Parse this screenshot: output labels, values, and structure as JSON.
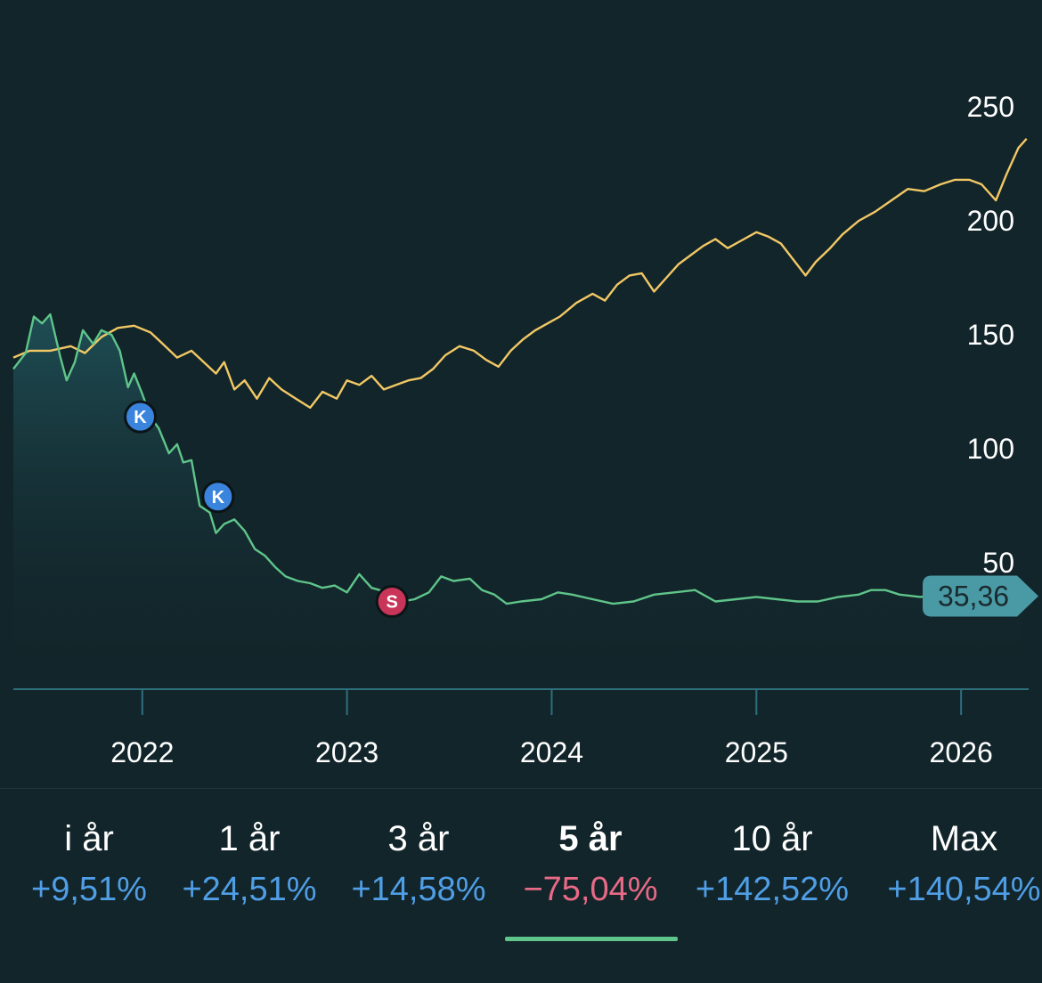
{
  "colors": {
    "background": "#12252a",
    "axis": "#2e6f7c",
    "stock_line": "#5fc58a",
    "index_line": "#f2c865",
    "positive": "#4f9ee6",
    "negative": "#e86a86",
    "buy_marker": "#3a84dd",
    "sell_marker": "#c93559",
    "price_badge": "#4a9aa6"
  },
  "chart_data": {
    "type": "line",
    "x_axis": {
      "ticks": [
        "2022",
        "2023",
        "2024",
        "2025",
        "2026"
      ],
      "range": [
        2021.37,
        2026.33
      ]
    },
    "y_axis": {
      "ticks": [
        "50",
        "100",
        "150",
        "200",
        "250"
      ],
      "range": [
        0,
        265
      ]
    },
    "grid": false,
    "current_value_label": "35,36",
    "series": [
      {
        "key": "stock",
        "area_fill": true,
        "points": [
          [
            2021.37,
            135
          ],
          [
            2021.43,
            142
          ],
          [
            2021.47,
            158
          ],
          [
            2021.51,
            155
          ],
          [
            2021.55,
            159
          ],
          [
            2021.6,
            140
          ],
          [
            2021.63,
            130
          ],
          [
            2021.67,
            138
          ],
          [
            2021.71,
            152
          ],
          [
            2021.76,
            146
          ],
          [
            2021.8,
            152
          ],
          [
            2021.85,
            150
          ],
          [
            2021.89,
            143
          ],
          [
            2021.93,
            127
          ],
          [
            2021.96,
            133
          ],
          [
            2022.0,
            124
          ],
          [
            2022.04,
            114
          ],
          [
            2022.08,
            109
          ],
          [
            2022.13,
            98
          ],
          [
            2022.17,
            102
          ],
          [
            2022.2,
            94
          ],
          [
            2022.24,
            95
          ],
          [
            2022.28,
            75
          ],
          [
            2022.33,
            72
          ],
          [
            2022.36,
            63
          ],
          [
            2022.4,
            67
          ],
          [
            2022.45,
            69
          ],
          [
            2022.5,
            64
          ],
          [
            2022.55,
            56
          ],
          [
            2022.6,
            53
          ],
          [
            2022.65,
            48
          ],
          [
            2022.7,
            44
          ],
          [
            2022.76,
            42
          ],
          [
            2022.82,
            41
          ],
          [
            2022.88,
            39
          ],
          [
            2022.94,
            40
          ],
          [
            2023.0,
            37
          ],
          [
            2023.06,
            45
          ],
          [
            2023.12,
            39
          ],
          [
            2023.2,
            37
          ],
          [
            2023.27,
            33
          ],
          [
            2023.33,
            34
          ],
          [
            2023.4,
            37
          ],
          [
            2023.46,
            44
          ],
          [
            2023.52,
            42
          ],
          [
            2023.6,
            43
          ],
          [
            2023.66,
            38
          ],
          [
            2023.72,
            36
          ],
          [
            2023.78,
            32
          ],
          [
            2023.85,
            33
          ],
          [
            2023.95,
            34
          ],
          [
            2024.03,
            37
          ],
          [
            2024.1,
            36
          ],
          [
            2024.2,
            34
          ],
          [
            2024.3,
            32
          ],
          [
            2024.4,
            33
          ],
          [
            2024.5,
            36
          ],
          [
            2024.6,
            37
          ],
          [
            2024.7,
            38
          ],
          [
            2024.8,
            33
          ],
          [
            2024.9,
            34
          ],
          [
            2025.0,
            35
          ],
          [
            2025.1,
            34
          ],
          [
            2025.2,
            33
          ],
          [
            2025.3,
            33
          ],
          [
            2025.4,
            35
          ],
          [
            2025.5,
            36
          ],
          [
            2025.56,
            38
          ],
          [
            2025.63,
            38
          ],
          [
            2025.7,
            36
          ],
          [
            2025.8,
            35
          ],
          [
            2025.9,
            36
          ],
          [
            2026.0,
            35
          ],
          [
            2026.1,
            35
          ],
          [
            2026.2,
            35
          ],
          [
            2026.3,
            35.36
          ]
        ]
      },
      {
        "key": "index",
        "points": [
          [
            2021.37,
            140
          ],
          [
            2021.45,
            143
          ],
          [
            2021.55,
            143
          ],
          [
            2021.65,
            145
          ],
          [
            2021.72,
            142
          ],
          [
            2021.8,
            149
          ],
          [
            2021.88,
            153
          ],
          [
            2021.96,
            154
          ],
          [
            2022.04,
            151
          ],
          [
            2022.1,
            146
          ],
          [
            2022.17,
            140
          ],
          [
            2022.24,
            143
          ],
          [
            2022.3,
            138
          ],
          [
            2022.36,
            133
          ],
          [
            2022.4,
            138
          ],
          [
            2022.45,
            126
          ],
          [
            2022.5,
            130
          ],
          [
            2022.56,
            122
          ],
          [
            2022.62,
            131
          ],
          [
            2022.68,
            126
          ],
          [
            2022.75,
            122
          ],
          [
            2022.82,
            118
          ],
          [
            2022.88,
            125
          ],
          [
            2022.95,
            122
          ],
          [
            2023.0,
            130
          ],
          [
            2023.06,
            128
          ],
          [
            2023.12,
            132
          ],
          [
            2023.18,
            126
          ],
          [
            2023.24,
            128
          ],
          [
            2023.3,
            130
          ],
          [
            2023.36,
            131
          ],
          [
            2023.42,
            135
          ],
          [
            2023.48,
            141
          ],
          [
            2023.55,
            145
          ],
          [
            2023.62,
            143
          ],
          [
            2023.68,
            139
          ],
          [
            2023.74,
            136
          ],
          [
            2023.8,
            143
          ],
          [
            2023.86,
            148
          ],
          [
            2023.92,
            152
          ],
          [
            2023.98,
            155
          ],
          [
            2024.04,
            158
          ],
          [
            2024.12,
            164
          ],
          [
            2024.2,
            168
          ],
          [
            2024.26,
            165
          ],
          [
            2024.32,
            172
          ],
          [
            2024.38,
            176
          ],
          [
            2024.44,
            177
          ],
          [
            2024.5,
            169
          ],
          [
            2024.56,
            175
          ],
          [
            2024.62,
            181
          ],
          [
            2024.68,
            185
          ],
          [
            2024.74,
            189
          ],
          [
            2024.8,
            192
          ],
          [
            2024.86,
            188
          ],
          [
            2024.92,
            191
          ],
          [
            2025.0,
            195
          ],
          [
            2025.06,
            193
          ],
          [
            2025.12,
            190
          ],
          [
            2025.18,
            183
          ],
          [
            2025.24,
            176
          ],
          [
            2025.29,
            182
          ],
          [
            2025.36,
            188
          ],
          [
            2025.42,
            194
          ],
          [
            2025.5,
            200
          ],
          [
            2025.58,
            204
          ],
          [
            2025.66,
            209
          ],
          [
            2025.74,
            214
          ],
          [
            2025.82,
            213
          ],
          [
            2025.9,
            216
          ],
          [
            2025.97,
            218
          ],
          [
            2026.04,
            218
          ],
          [
            2026.1,
            216
          ],
          [
            2026.17,
            209
          ],
          [
            2026.22,
            220
          ],
          [
            2026.28,
            232
          ],
          [
            2026.32,
            236
          ]
        ]
      }
    ],
    "markers": [
      {
        "label": "K",
        "type": "buy",
        "x": 2021.99,
        "y": 114
      },
      {
        "label": "K",
        "type": "buy",
        "x": 2022.37,
        "y": 79
      },
      {
        "label": "S",
        "type": "sell",
        "x": 2023.22,
        "y": 33
      }
    ]
  },
  "tabs": [
    {
      "label": "i år",
      "change": "+9,51%",
      "sign": "positive",
      "active": false
    },
    {
      "label": "1 år",
      "change": "+24,51%",
      "sign": "positive",
      "active": false
    },
    {
      "label": "3 år",
      "change": "+14,58%",
      "sign": "positive",
      "active": false
    },
    {
      "label": "5 år",
      "change": "−75,04%",
      "sign": "negative",
      "active": true
    },
    {
      "label": "10 år",
      "change": "+142,52%",
      "sign": "positive",
      "active": false
    },
    {
      "label": "Max",
      "change": "+140,54%",
      "sign": "positive",
      "active": false
    }
  ]
}
